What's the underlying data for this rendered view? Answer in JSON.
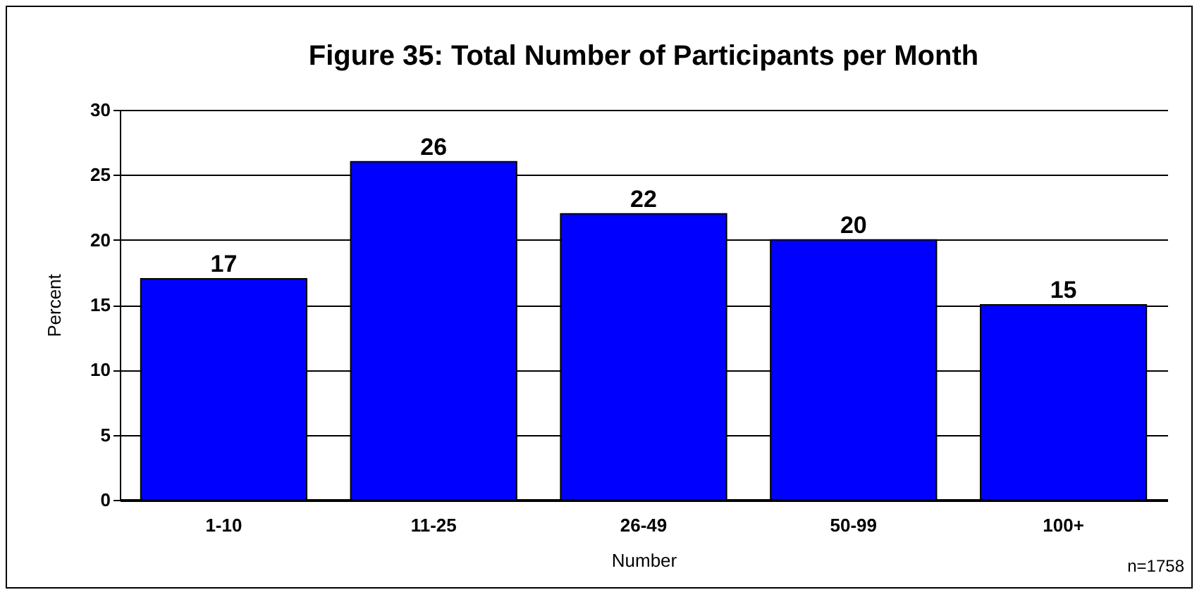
{
  "chart_data": {
    "type": "bar",
    "title": "Figure 35: Total Number of Participants per Month",
    "xlabel": "Number",
    "ylabel": "Percent",
    "categories": [
      "1-10",
      "11-25",
      "26-49",
      "50-99",
      "100+"
    ],
    "values": [
      17,
      26,
      22,
      20,
      15
    ],
    "color": "#0000ff",
    "ylim": [
      0,
      30
    ],
    "yticks": [
      0,
      5,
      10,
      15,
      20,
      25,
      30
    ],
    "grid": "y",
    "data_labels": true,
    "annotations": [
      "n=1758"
    ]
  }
}
